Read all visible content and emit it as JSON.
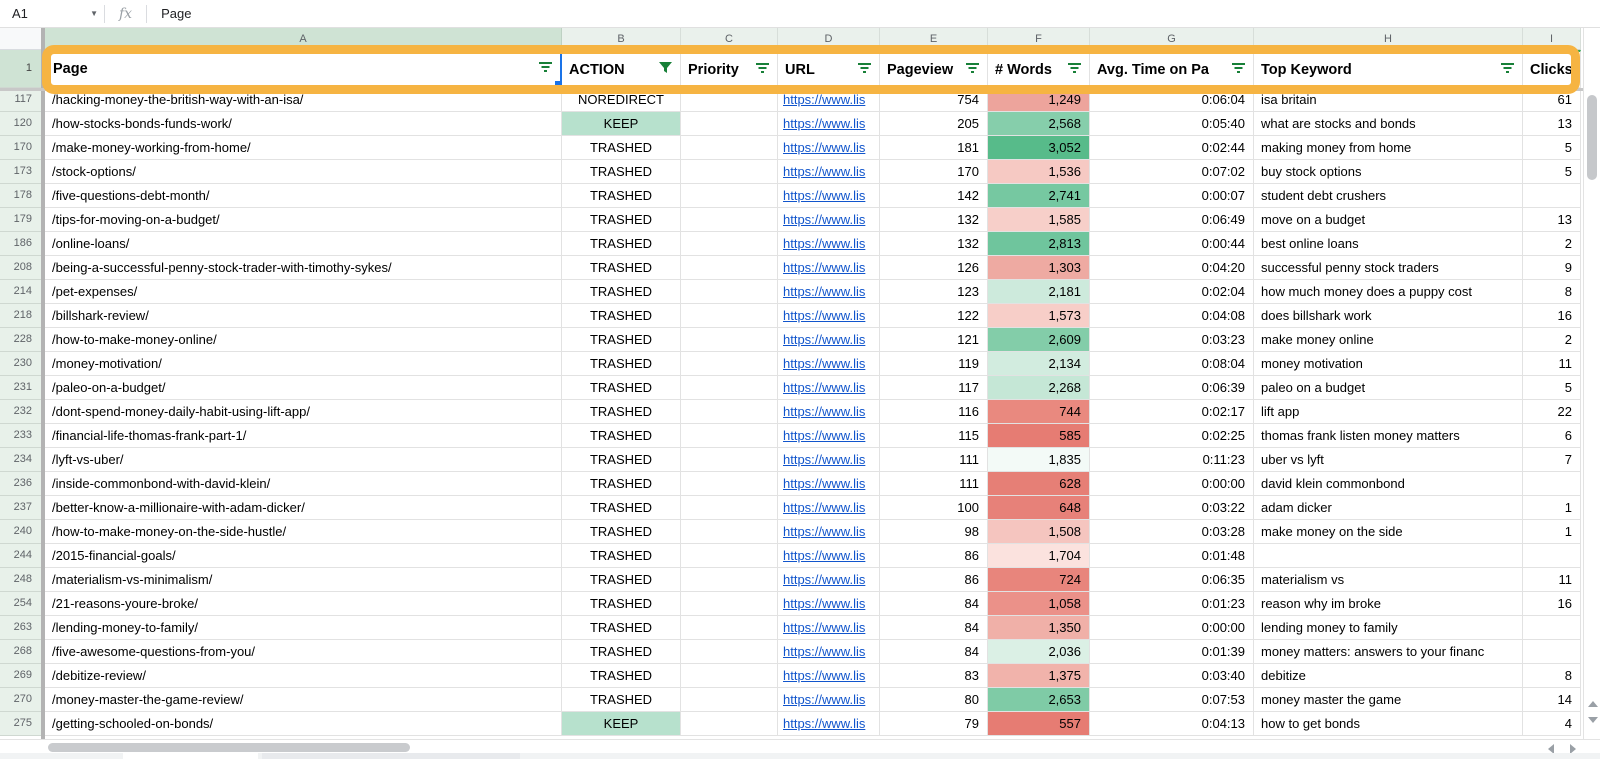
{
  "formula_bar": {
    "cell_ref": "A1",
    "function_label": "fx",
    "value": "Page"
  },
  "column_letters": [
    "A",
    "B",
    "C",
    "D",
    "E",
    "F",
    "G",
    "H",
    "I"
  ],
  "header": {
    "columns": [
      {
        "label": "Page",
        "filter_icon": "lines"
      },
      {
        "label": "ACTION",
        "filter_icon": "funnel"
      },
      {
        "label": "Priority",
        "filter_icon": "lines"
      },
      {
        "label": "URL",
        "filter_icon": "lines"
      },
      {
        "label": "Pageview",
        "filter_icon": "lines"
      },
      {
        "label": "# Words",
        "filter_icon": "lines"
      },
      {
        "label": "Avg. Time on Pa",
        "filter_icon": "lines"
      },
      {
        "label": "Top Keyword",
        "filter_icon": "lines"
      },
      {
        "label": "Clicks",
        "filter_icon": "lines"
      }
    ]
  },
  "colors": {
    "selection_blue": "#1a73e8",
    "filter_green": "#188038",
    "range_border_green": "#34a853",
    "annotation_orange": "#f6b442",
    "keep_green": "#b7e1cd",
    "link_blue": "#1155cc"
  },
  "rows": [
    {
      "n": "117",
      "page": "/hacking-money-the-british-way-with-an-isa/",
      "action": "NOREDIRECT",
      "keep": false,
      "url": "https://www.lis",
      "views": "754",
      "words": "1,249",
      "wcolor": "#eda49c",
      "time": "0:06:04",
      "keyword": "isa britain",
      "clicks": "61"
    },
    {
      "n": "120",
      "page": "/how-stocks-bonds-funds-work/",
      "action": "KEEP",
      "keep": true,
      "url": "https://www.lis",
      "views": "205",
      "words": "2,568",
      "wcolor": "#86ceab",
      "time": "0:05:40",
      "keyword": "what are stocks and bonds",
      "clicks": "13"
    },
    {
      "n": "170",
      "page": "/make-money-working-from-home/",
      "action": "TRASHED",
      "keep": false,
      "url": "https://www.lis",
      "views": "181",
      "words": "3,052",
      "wcolor": "#57bb8a",
      "time": "0:02:44",
      "keyword": "making money from home",
      "clicks": "5"
    },
    {
      "n": "173",
      "page": "/stock-options/",
      "action": "TRASHED",
      "keep": false,
      "url": "https://www.lis",
      "views": "170",
      "words": "1,536",
      "wcolor": "#f6c9c3",
      "time": "0:07:02",
      "keyword": "buy stock options",
      "clicks": "5"
    },
    {
      "n": "178",
      "page": "/five-questions-debt-month/",
      "action": "TRASHED",
      "keep": false,
      "url": "https://www.lis",
      "views": "142",
      "words": "2,741",
      "wcolor": "#76c8a1",
      "time": "0:00:07",
      "keyword": "student debt crushers",
      "clicks": ""
    },
    {
      "n": "179",
      "page": "/tips-for-moving-on-a-budget/",
      "action": "TRASHED",
      "keep": false,
      "url": "https://www.lis",
      "views": "132",
      "words": "1,585",
      "wcolor": "#f7cfc9",
      "time": "0:06:49",
      "keyword": "move on a budget",
      "clicks": "13"
    },
    {
      "n": "186",
      "page": "/online-loans/",
      "action": "TRASHED",
      "keep": false,
      "url": "https://www.lis",
      "views": "132",
      "words": "2,813",
      "wcolor": "#6fc59d",
      "time": "0:00:44",
      "keyword": "best online loans",
      "clicks": "2"
    },
    {
      "n": "208",
      "page": "/being-a-successful-penny-stock-trader-with-timothy-sykes/",
      "action": "TRASHED",
      "keep": false,
      "url": "https://www.lis",
      "views": "126",
      "words": "1,303",
      "wcolor": "#eeaaa2",
      "time": "0:04:20",
      "keyword": "successful penny stock traders",
      "clicks": "9"
    },
    {
      "n": "214",
      "page": "/pet-expenses/",
      "action": "TRASHED",
      "keep": false,
      "url": "https://www.lis",
      "views": "123",
      "words": "2,181",
      "wcolor": "#cdeadc",
      "time": "0:02:04",
      "keyword": "how much money does a puppy cost",
      "clicks": "8"
    },
    {
      "n": "218",
      "page": "/billshark-review/",
      "action": "TRASHED",
      "keep": false,
      "url": "https://www.lis",
      "views": "122",
      "words": "1,573",
      "wcolor": "#f7cec8",
      "time": "0:04:08",
      "keyword": "does billshark work",
      "clicks": "16"
    },
    {
      "n": "228",
      "page": "/how-to-make-money-online/",
      "action": "TRASHED",
      "keep": false,
      "url": "https://www.lis",
      "views": "121",
      "words": "2,609",
      "wcolor": "#83cda9",
      "time": "0:03:23",
      "keyword": "make money online",
      "clicks": "2"
    },
    {
      "n": "230",
      "page": "/money-motivation/",
      "action": "TRASHED",
      "keep": false,
      "url": "https://www.lis",
      "views": "119",
      "words": "2,134",
      "wcolor": "#d2ecdf",
      "time": "0:08:04",
      "keyword": "money motivation",
      "clicks": "11"
    },
    {
      "n": "231",
      "page": "/paleo-on-a-budget/",
      "action": "TRASHED",
      "keep": false,
      "url": "https://www.lis",
      "views": "117",
      "words": "2,268",
      "wcolor": "#c5e7d6",
      "time": "0:06:39",
      "keyword": "paleo on a budget",
      "clicks": "5"
    },
    {
      "n": "232",
      "page": "/dont-spend-money-daily-habit-using-lift-app/",
      "action": "TRASHED",
      "keep": false,
      "url": "https://www.lis",
      "views": "116",
      "words": "744",
      "wcolor": "#e9897f",
      "time": "0:02:17",
      "keyword": "lift app",
      "clicks": "22"
    },
    {
      "n": "233",
      "page": "/financial-life-thomas-frank-part-1/",
      "action": "TRASHED",
      "keep": false,
      "url": "https://www.lis",
      "views": "115",
      "words": "585",
      "wcolor": "#e67c73",
      "time": "0:02:25",
      "keyword": "thomas frank listen money matters",
      "clicks": "6"
    },
    {
      "n": "234",
      "page": "/lyft-vs-uber/",
      "action": "TRASHED",
      "keep": false,
      "url": "https://www.lis",
      "views": "111",
      "words": "1,835",
      "wcolor": "#f3faf7",
      "time": "0:11:23",
      "keyword": "uber vs lyft",
      "clicks": "7"
    },
    {
      "n": "236",
      "page": "/inside-commonbond-with-david-klein/",
      "action": "TRASHED",
      "keep": false,
      "url": "https://www.lis",
      "views": "111",
      "words": "628",
      "wcolor": "#e67f76",
      "time": "0:00:00",
      "keyword": "david klein commonbond",
      "clicks": ""
    },
    {
      "n": "237",
      "page": "/better-know-a-millionaire-with-adam-dicker/",
      "action": "TRASHED",
      "keep": false,
      "url": "https://www.lis",
      "views": "100",
      "words": "648",
      "wcolor": "#e78179",
      "time": "0:03:22",
      "keyword": "adam dicker",
      "clicks": "1"
    },
    {
      "n": "240",
      "page": "/how-to-make-money-on-the-side-hustle/",
      "action": "TRASHED",
      "keep": false,
      "url": "https://www.lis",
      "views": "98",
      "words": "1,508",
      "wcolor": "#f5c5bf",
      "time": "0:03:28",
      "keyword": "make money on the side",
      "clicks": "1"
    },
    {
      "n": "244",
      "page": "/2015-financial-goals/",
      "action": "TRASHED",
      "keep": false,
      "url": "https://www.lis",
      "views": "86",
      "words": "1,704",
      "wcolor": "#fbe2de",
      "time": "0:01:48",
      "keyword": "",
      "clicks": ""
    },
    {
      "n": "248",
      "page": "/materialism-vs-minimalism/",
      "action": "TRASHED",
      "keep": false,
      "url": "https://www.lis",
      "views": "86",
      "words": "724",
      "wcolor": "#e8857c",
      "time": "0:06:35",
      "keyword": "materialism vs",
      "clicks": "11"
    },
    {
      "n": "254",
      "page": "/21-reasons-youre-broke/",
      "action": "TRASHED",
      "keep": false,
      "url": "https://www.lis",
      "views": "84",
      "words": "1,058",
      "wcolor": "#eb9189",
      "time": "0:01:23",
      "keyword": "reason why im broke",
      "clicks": "16"
    },
    {
      "n": "263",
      "page": "/lending-money-to-family/",
      "action": "TRASHED",
      "keep": false,
      "url": "https://www.lis",
      "views": "84",
      "words": "1,350",
      "wcolor": "#f0b0a8",
      "time": "0:00:00",
      "keyword": "lending money to family",
      "clicks": ""
    },
    {
      "n": "268",
      "page": "/five-awesome-questions-from-you/",
      "action": "TRASHED",
      "keep": false,
      "url": "https://www.lis",
      "views": "84",
      "words": "2,036",
      "wcolor": "#dbf0e5",
      "time": "0:01:39",
      "keyword": "money matters: answers to your financ",
      "clicks": ""
    },
    {
      "n": "269",
      "page": "/debitize-review/",
      "action": "TRASHED",
      "keep": false,
      "url": "https://www.lis",
      "views": "83",
      "words": "1,375",
      "wcolor": "#f1b3ab",
      "time": "0:03:40",
      "keyword": "debitize",
      "clicks": "8"
    },
    {
      "n": "270",
      "page": "/money-master-the-game-review/",
      "action": "TRASHED",
      "keep": false,
      "url": "https://www.lis",
      "views": "80",
      "words": "2,653",
      "wcolor": "#7fcba6",
      "time": "0:07:53",
      "keyword": "money master the game",
      "clicks": "14"
    },
    {
      "n": "275",
      "page": "/getting-schooled-on-bonds/",
      "action": "KEEP",
      "keep": true,
      "url": "https://www.lis",
      "views": "79",
      "words": "557",
      "wcolor": "#e67c73",
      "time": "0:04:13",
      "keyword": "how to get bonds",
      "clicks": "4"
    }
  ]
}
